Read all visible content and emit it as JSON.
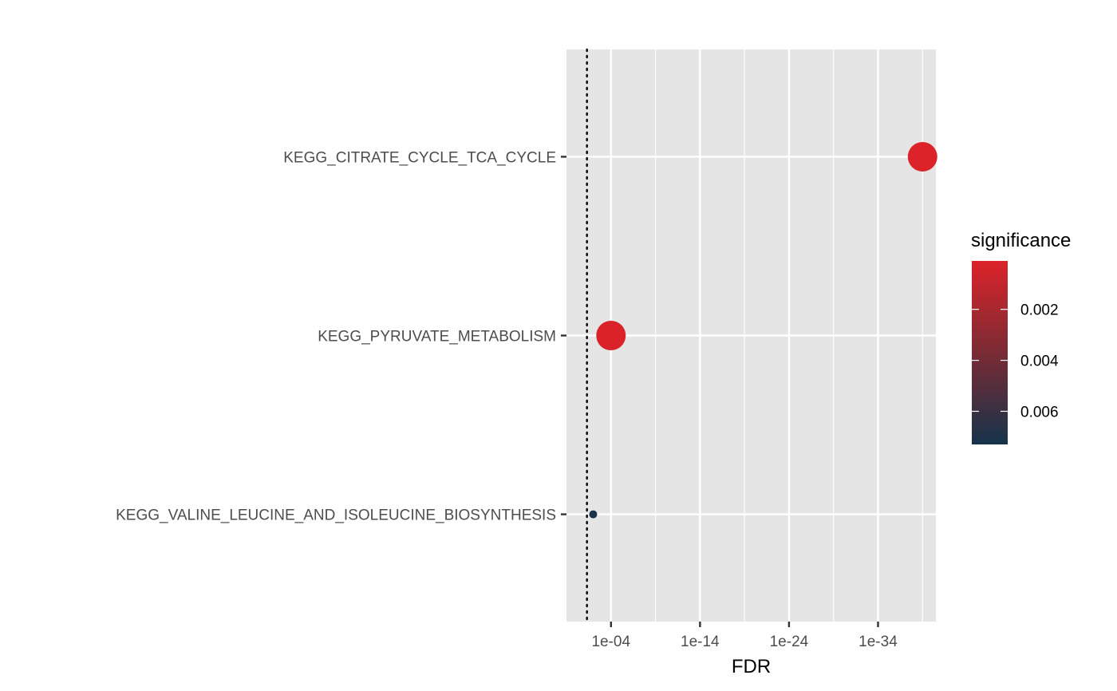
{
  "chart_data": {
    "type": "scatter",
    "title": "",
    "xlabel": "FDR",
    "ylabel": "",
    "x_scale": "reverse-log10",
    "x_ticks": [
      "1e-04",
      "1e-14",
      "1e-24",
      "1e-34"
    ],
    "x_tick_exponents": [
      -4,
      -14,
      -24,
      -34
    ],
    "xlim_exponent": [
      1,
      -40.5
    ],
    "threshold_line": {
      "value": 0.05,
      "style": "dotted",
      "color": "#000000"
    },
    "categories": [
      "KEGG_CITRATE_CYCLE_TCA_CYCLE",
      "KEGG_PYRUVATE_METABOLISM",
      "KEGG_VALINE_LEUCINE_AND_ISOLEUCINE_BIOSYNTHESIS"
    ],
    "points": [
      {
        "category": "KEGG_CITRATE_CYCLE_TCA_CYCLE",
        "fdr_exponent": -39,
        "significance": 0.0001,
        "size": "large"
      },
      {
        "category": "KEGG_PYRUVATE_METABOLISM",
        "fdr_exponent": -4,
        "significance": 0.0002,
        "size": "large"
      },
      {
        "category": "KEGG_VALINE_LEUCINE_AND_ISOLEUCINE_BIOSYNTHESIS",
        "fdr_exponent": -2,
        "significance": 0.0072,
        "size": "small"
      }
    ],
    "grid": true,
    "legend": {
      "title": "significance",
      "placement": "right",
      "type": "colorbar",
      "labels": [
        "0.002",
        "0.004",
        "0.006"
      ],
      "label_values": [
        0.002,
        0.004,
        0.006
      ],
      "range": [
        0.0001,
        0.0073
      ],
      "color_low_value": "#dc2329",
      "color_high_value": "#15334a"
    }
  },
  "colors": {
    "panel_background": "#e5e5e5",
    "grid_line": "#ffffff",
    "point_high_significance": "#dc2329",
    "point_low_significance": "#15334a"
  }
}
